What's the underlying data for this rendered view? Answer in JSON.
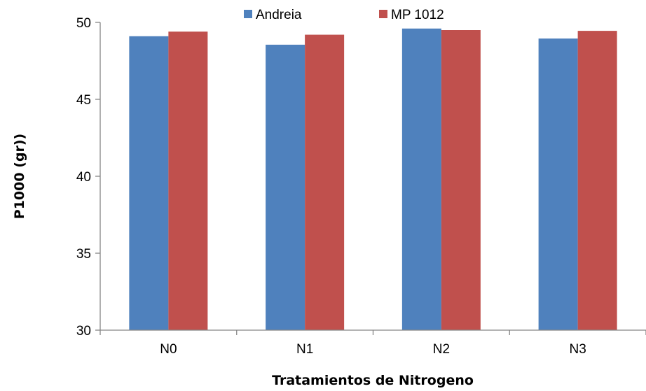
{
  "chart_data": {
    "type": "bar",
    "categories": [
      "N0",
      "N1",
      "N2",
      "N3"
    ],
    "series": [
      {
        "name": "Andreia",
        "values": [
          49.1,
          48.55,
          49.6,
          48.95
        ],
        "color": "#4F81BD"
      },
      {
        "name": "MP 1012",
        "values": [
          49.4,
          49.2,
          49.5,
          49.45
        ],
        "color": "#C0504D"
      }
    ],
    "xlabel": "Tratamientos de Nitrogeno",
    "ylabel": "P1000 (gr))",
    "ylim": [
      30,
      50
    ],
    "yticks": [
      30,
      35,
      40,
      45,
      50
    ],
    "grid": false,
    "legend_position": "top"
  }
}
